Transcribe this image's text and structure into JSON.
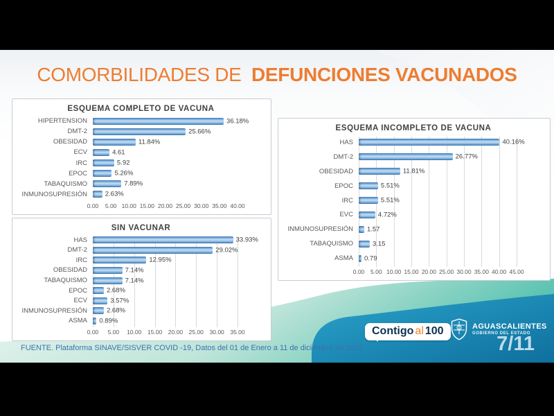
{
  "slide": {
    "title_light": "COMORBILIDADES DE",
    "title_bold": "DEFUNCIONES VACUNADOS",
    "source": "FUENTE. Plataforma SINAVE/SISVER COVID -19, Datos del 01 de Enero a 11 de diciembre de 2021",
    "page": "7/11"
  },
  "footer": {
    "contigo": {
      "part1": "Contigo",
      "part2": "al",
      "part3": "100"
    },
    "gov": {
      "icon": "aguascalientes-crest-icon",
      "line1": "AGUASCALIENTES",
      "line2": "GOBIERNO DEL ESTADO"
    }
  },
  "colors": {
    "title_orange": "#ED7D31",
    "bar_blue": "#5B9BD5",
    "bar_blue_dark": "#47729E",
    "gridline": "#D9D9D9",
    "label_gray": "#595959",
    "value_gray": "#404040",
    "source_blue": "#3C72AE",
    "mint_light": "#E9F5EE",
    "teal": "#57C2B0",
    "footer_blue_light": "#2AA5CD",
    "footer_blue_dark": "#0F6F9D",
    "letterbox": "#000000"
  },
  "chart_data": [
    {
      "type": "bar",
      "orientation": "horizontal",
      "title": "ESQUEMA COMPLETO DE VACUNA",
      "categories": [
        "HIPERTENSION",
        "DMT-2",
        "OBESIDAD",
        "ECV",
        "IRC",
        "EPOC",
        "TABAQUISMO",
        "INMUNOSUPRESIÓN"
      ],
      "values": [
        36.18,
        25.66,
        11.84,
        4.61,
        5.92,
        5.26,
        7.89,
        2.63
      ],
      "value_labels": [
        "36.18%",
        "25.66%",
        "11.84%",
        "4.61",
        "5.92",
        "5.26%",
        "7.89%",
        "2.63%"
      ],
      "xlabel": "",
      "ylabel": "",
      "xlim": [
        0,
        40
      ],
      "xticks": [
        "0.00",
        "5.00",
        "10.00",
        "15.00",
        "20.00",
        "25.00",
        "30.00",
        "35.00",
        "40.00"
      ],
      "gridlines": false,
      "legend": "none",
      "bar_color": "#5B9BD5"
    },
    {
      "type": "bar",
      "orientation": "horizontal",
      "title": "ESQUEMA INCOMPLETO DE VACUNA",
      "categories": [
        "HAS",
        "DMT-2",
        "OBESIDAD",
        "EPOC",
        "IRC",
        "EVC",
        "INMUNOSUPRESIÓN",
        "TABAQUISMO",
        "ASMA"
      ],
      "values": [
        40.16,
        26.77,
        11.81,
        5.51,
        5.51,
        4.72,
        1.57,
        3.15,
        0.79
      ],
      "value_labels": [
        "40.16%",
        "26.77%",
        "11.81%",
        "5.51%",
        "5.51%",
        "4.72%",
        "1.57",
        "3.15",
        "0.79"
      ],
      "xlabel": "",
      "ylabel": "",
      "xlim": [
        0,
        45
      ],
      "xticks": [
        "0.00",
        "5.00",
        "10.00",
        "15.00",
        "20.00",
        "25.00",
        "30.00",
        "35.00",
        "40.00",
        "45.00"
      ],
      "gridlines": true,
      "legend": "none",
      "bar_color": "#5B9BD5"
    },
    {
      "type": "bar",
      "orientation": "horizontal",
      "title": "SIN VACUNAR",
      "categories": [
        "HAS",
        "DMT-2",
        "IRC",
        "OBESIDAD",
        "TABAQUISMO",
        "EPOC",
        "ECV",
        "INMUNOSUPRESIÓN",
        "ASMA"
      ],
      "values": [
        33.93,
        29.02,
        12.95,
        7.14,
        7.14,
        2.68,
        3.57,
        2.68,
        0.89
      ],
      "value_labels": [
        "33.93%",
        "29.02%",
        "12.95%",
        "7.14%",
        "7.14%",
        "2.68%",
        "3.57%",
        "2.68%",
        "0.89%"
      ],
      "xlabel": "",
      "ylabel": "",
      "xlim": [
        0,
        35
      ],
      "xticks": [
        "0.00",
        "5.00",
        "10.00",
        "15.00",
        "20.00",
        "25.00",
        "30.00",
        "35.00"
      ],
      "gridlines": true,
      "legend": "none",
      "bar_color": "#5B9BD5"
    }
  ]
}
